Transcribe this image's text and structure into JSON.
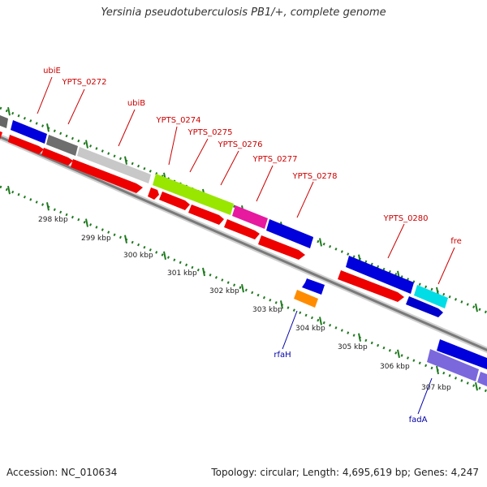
{
  "title": "Yersinia pseudotuberculosis PB1/+, complete genome",
  "footer": {
    "accession": "Accession: NC_010634",
    "summary": "Topology: circular; Length: 4,695,619 bp; Genes: 4,247"
  },
  "colors": {
    "backbone": "#8a8a8a",
    "tick": "#1f7a1f",
    "cds": "#ff0000",
    "label_red": "#cc0000",
    "label_blue": "#0000aa"
  },
  "scale_labels": [
    "298 kbp",
    "299 kbp",
    "300 kbp",
    "301 kbp",
    "302 kbp",
    "303 kbp",
    "304 kbp",
    "305 kbp",
    "306 kbp",
    "307 kbp"
  ],
  "gene_labels": [
    {
      "text": "ubiE",
      "color": "red"
    },
    {
      "text": "YPTS_0272",
      "color": "red"
    },
    {
      "text": "ubiB",
      "color": "red"
    },
    {
      "text": "YPTS_0274",
      "color": "red"
    },
    {
      "text": "YPTS_0275",
      "color": "red"
    },
    {
      "text": "YPTS_0276",
      "color": "red"
    },
    {
      "text": "YPTS_0277",
      "color": "red"
    },
    {
      "text": "YPTS_0278",
      "color": "red"
    },
    {
      "text": "YPTS_0280",
      "color": "red"
    },
    {
      "text": "fre",
      "color": "red"
    },
    {
      "text": "rfaH",
      "color": "blue"
    },
    {
      "text": "fadA",
      "color": "blue"
    }
  ]
}
